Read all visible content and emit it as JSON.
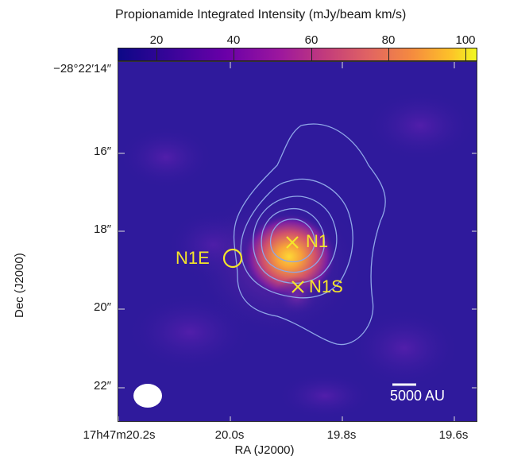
{
  "colorbar": {
    "title": "Propionamide Integrated Intensity (mJy/beam km/s)",
    "ticks": [
      "20",
      "40",
      "60",
      "80",
      "100"
    ]
  },
  "axes": {
    "ylabel": "Dec (J2000)",
    "xlabel": "RA (J2000)",
    "yticks": [
      {
        "main": "−28°22′14″"
      },
      {
        "main": "16″"
      },
      {
        "main": "18″"
      },
      {
        "main": "20″"
      },
      {
        "main": "22″"
      }
    ],
    "xticks": [
      {
        "text": "17h47m20.2s"
      },
      {
        "text": "20.0s"
      },
      {
        "text": "19.8s"
      },
      {
        "text": "19.6s"
      }
    ]
  },
  "labels": {
    "n1": "N1",
    "n1s": "N1S",
    "n1e": "N1E",
    "scale": "5000 AU"
  },
  "colors": {
    "marker": "#f5e52a",
    "contour": "#8fa6e8",
    "background": "#2f1a9c"
  }
}
